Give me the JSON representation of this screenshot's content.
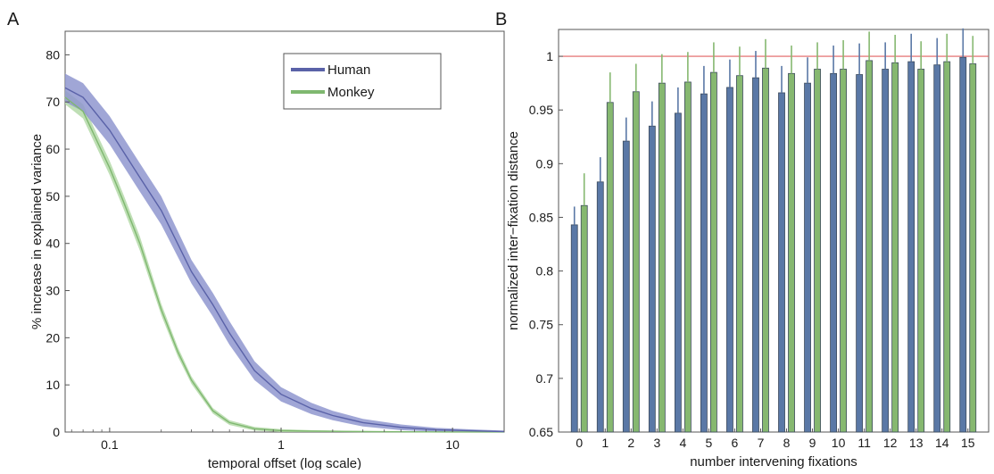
{
  "figure": {
    "panel_a_letter": "A",
    "panel_b_letter": "B"
  },
  "chart_data": [
    {
      "type": "line",
      "panel": "A",
      "title": "",
      "xlabel": "temporal offset (log scale)",
      "ylabel": "% increase in explained variance",
      "xscale": "log",
      "xlim": [
        0.055,
        20
      ],
      "ylim": [
        0,
        85
      ],
      "xticks": [
        0.1,
        1,
        10
      ],
      "xtick_labels": [
        "0.1",
        "1",
        "10"
      ],
      "yticks": [
        0,
        10,
        20,
        30,
        40,
        50,
        60,
        70,
        80
      ],
      "ytick_labels": [
        "0",
        "10",
        "20",
        "30",
        "40",
        "50",
        "60",
        "70",
        "80"
      ],
      "grid": false,
      "legend_position": "top-right",
      "series": [
        {
          "name": "Human",
          "color": "#5a62a8",
          "band_color": "#8f96cf",
          "x": [
            0.055,
            0.07,
            0.1,
            0.15,
            0.2,
            0.3,
            0.4,
            0.5,
            0.7,
            1.0,
            1.5,
            2.0,
            3.0,
            5.0,
            8.0,
            12.0,
            20.0
          ],
          "y": [
            73,
            71,
            64,
            54,
            47,
            34,
            27,
            21,
            13,
            8,
            5,
            3.5,
            2,
            1,
            0.5,
            0.3,
            0.1
          ],
          "band": [
            3,
            3,
            3,
            3,
            3,
            2.5,
            2.5,
            2.5,
            2,
            1.5,
            1.2,
            1,
            0.8,
            0.6,
            0.4,
            0.3,
            0.2
          ]
        },
        {
          "name": "Monkey",
          "color": "#7fb870",
          "band_color": "#b4d9a8",
          "x": [
            0.055,
            0.07,
            0.1,
            0.12,
            0.15,
            0.2,
            0.25,
            0.3,
            0.4,
            0.5,
            0.7,
            1.0,
            1.5,
            2.0,
            3.0,
            5.0,
            10.0,
            20.0
          ],
          "y": [
            71,
            68,
            56,
            49,
            40,
            26,
            17,
            11,
            4.5,
            2,
            0.7,
            0.3,
            0.2,
            0.15,
            0.1,
            0.05,
            0.02,
            0.01
          ],
          "band": [
            1.5,
            1.5,
            1.5,
            1.5,
            1.5,
            1.2,
            1,
            0.8,
            0.6,
            0.5,
            0.4,
            0.3,
            0.2,
            0.2,
            0.1,
            0.1,
            0.1,
            0.1
          ]
        }
      ]
    },
    {
      "type": "bar",
      "panel": "B",
      "title": "",
      "xlabel": "number intervening fixations",
      "ylabel": "normalized inter−fixation distance",
      "categories": [
        "0",
        "1",
        "2",
        "3",
        "4",
        "5",
        "6",
        "7",
        "8",
        "9",
        "10",
        "11",
        "12",
        "13",
        "14",
        "15"
      ],
      "ylim": [
        0.65,
        1.025
      ],
      "yticks": [
        0.65,
        0.7,
        0.75,
        0.8,
        0.85,
        0.9,
        0.95,
        1
      ],
      "ytick_labels": [
        "0.65",
        "0.7",
        "0.75",
        "0.8",
        "0.85",
        "0.9",
        "0.95",
        "1"
      ],
      "grid": false,
      "reference_line": {
        "y": 1.0,
        "color": "#e06060"
      },
      "series": [
        {
          "name": "Human",
          "color": "#5a78a6",
          "values": [
            0.843,
            0.883,
            0.921,
            0.935,
            0.947,
            0.965,
            0.971,
            0.98,
            0.966,
            0.975,
            0.984,
            0.983,
            0.988,
            0.995,
            0.992,
            0.999
          ],
          "errors": [
            0.017,
            0.023,
            0.022,
            0.023,
            0.024,
            0.026,
            0.026,
            0.025,
            0.025,
            0.024,
            0.026,
            0.029,
            0.025,
            0.026,
            0.025,
            0.027
          ]
        },
        {
          "name": "Monkey",
          "color": "#86b870",
          "values": [
            0.861,
            0.957,
            0.967,
            0.975,
            0.976,
            0.985,
            0.982,
            0.989,
            0.984,
            0.988,
            0.988,
            0.996,
            0.994,
            0.988,
            0.995,
            0.993
          ],
          "errors": [
            0.03,
            0.028,
            0.026,
            0.027,
            0.028,
            0.028,
            0.027,
            0.027,
            0.026,
            0.025,
            0.027,
            0.027,
            0.026,
            0.026,
            0.026,
            0.026
          ]
        }
      ]
    }
  ]
}
